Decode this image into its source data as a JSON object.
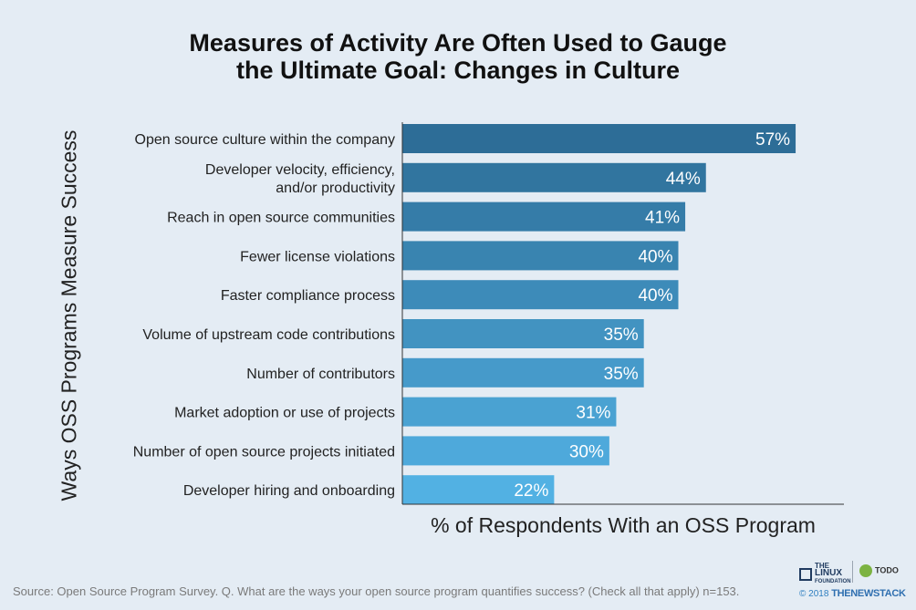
{
  "title_lines": [
    "Measures of Activity Are Often Used to Gauge",
    "the Ultimate Goal: Changes in Culture"
  ],
  "source": "Source: Open Source Program Survey. Q. What are the ways your open source program quantifies success? (Check all that apply) n=153.",
  "logos": {
    "linux_foundation": [
      "THE",
      "LINUX",
      "FOUNDATION"
    ],
    "todo": "TODO",
    "copyright": "© 2018",
    "newstack": "THENEWSTACK"
  },
  "chart_data": {
    "type": "bar",
    "orientation": "horizontal",
    "title": "Measures of Activity Are Often Used to Gauge the Ultimate Goal: Changes in Culture",
    "xlabel": "% of Respondents With an OSS Program",
    "ylabel": "Ways OSS Programs Measure Success",
    "categories": [
      [
        "Open source culture within the company"
      ],
      [
        "Developer velocity, efficiency,",
        "and/or productivity"
      ],
      [
        "Reach in open source communities"
      ],
      [
        "Fewer license violations"
      ],
      [
        "Faster compliance process"
      ],
      [
        "Volume of upstream code contributions"
      ],
      [
        "Number of contributors"
      ],
      [
        "Market adoption or use of projects"
      ],
      [
        "Number of open source projects initiated"
      ],
      [
        "Developer hiring and onboarding"
      ]
    ],
    "values": [
      57,
      44,
      41,
      40,
      40,
      35,
      35,
      31,
      30,
      22
    ],
    "value_labels": [
      "57%",
      "44%",
      "41%",
      "40%",
      "40%",
      "35%",
      "35%",
      "31%",
      "30%",
      "22%"
    ],
    "xlim": [
      0,
      64
    ],
    "grid": false,
    "colors": {
      "bar_start": "#2d6d97",
      "bar_end": "#52b1e3",
      "value_text": "#ffffff",
      "axis": "#333333"
    }
  }
}
